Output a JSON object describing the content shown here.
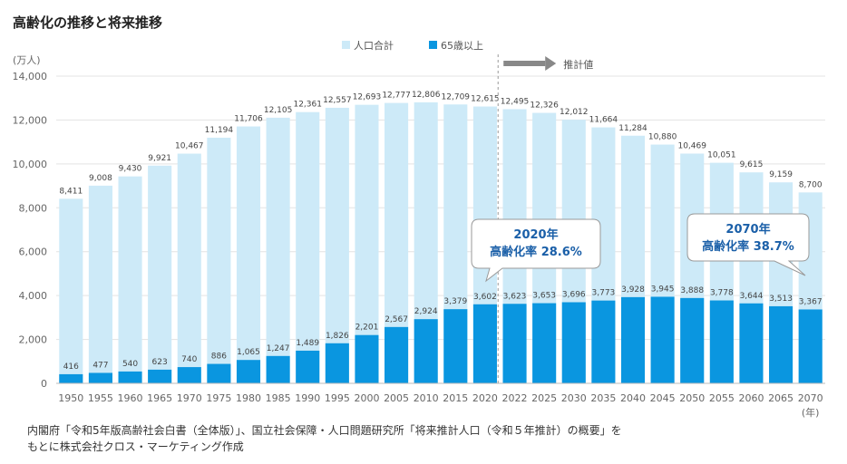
{
  "title": "高齢化の推移と将来推移",
  "chart_data": {
    "type": "bar",
    "stacking": "overlay",
    "categories": [
      "1950",
      "1955",
      "1960",
      "1965",
      "1970",
      "1975",
      "1980",
      "1985",
      "1990",
      "1995",
      "2000",
      "2005",
      "2010",
      "2015",
      "2020",
      "2022",
      "2025",
      "2030",
      "2035",
      "2040",
      "2045",
      "2050",
      "2055",
      "2060",
      "2065",
      "2070"
    ],
    "series": [
      {
        "name": "人口合計",
        "color": "#cdeaf8",
        "values": [
          8411,
          9008,
          9430,
          9921,
          10467,
          11194,
          11706,
          12105,
          12361,
          12557,
          12693,
          12777,
          12806,
          12709,
          12615,
          12495,
          12326,
          12012,
          11664,
          11284,
          10880,
          10469,
          10051,
          9615,
          9159,
          8700
        ]
      },
      {
        "name": "65歳以上",
        "color": "#0a96e0",
        "values": [
          416,
          477,
          540,
          623,
          740,
          886,
          1065,
          1247,
          1489,
          1826,
          2201,
          2567,
          2924,
          3379,
          3602,
          3623,
          3653,
          3696,
          3773,
          3928,
          3945,
          3888,
          3778,
          3644,
          3513,
          3367
        ]
      }
    ],
    "total_labels": [
      "8,411",
      "9,008",
      "9,430",
      "9,921",
      "10,467",
      "11,194",
      "11,706",
      "12,105",
      "12,361",
      "12,557",
      "12,693",
      "12,777",
      "12,806",
      "12,709",
      "12,615",
      "12,495",
      "12,326",
      "12,012",
      "11,664",
      "11,284",
      "10,880",
      "10,469",
      "10,051",
      "9,615",
      "9,159",
      "8,700"
    ],
    "elderly_labels": [
      "416",
      "477",
      "540",
      "623",
      "740",
      "886",
      "1,065",
      "1,247",
      "1,489",
      "1,826",
      "2,201",
      "2,567",
      "2,924",
      "3,379",
      "3,602",
      "3,623",
      "3,653",
      "3,696",
      "3,773",
      "3,928",
      "3,945",
      "3,888",
      "3,778",
      "3,644",
      "3,513",
      "3,367"
    ],
    "ylim": [
      0,
      14000
    ],
    "yticks": [
      "0",
      "2,000",
      "4,000",
      "6,000",
      "8,000",
      "10,000",
      "12,000",
      "14,000"
    ],
    "ylabel": "(万人)",
    "xlabel": "(年)",
    "grid": true,
    "projection_start_category": "2022",
    "projection_label": "推計値",
    "callouts": [
      {
        "line1": "2020年",
        "line2": "高齢化率 28.6%",
        "category": "2020"
      },
      {
        "line1": "2070年",
        "line2": "高齢化率 38.7%",
        "category": "2070"
      }
    ]
  },
  "source_lines": [
    "内閣府「令和5年版高齢社会白書（全体版）」、国立社会保障・人口問題研究所「将来推計人口（令和５年推計）の概要」を",
    "もとに株式会社クロス・マーケティング作成"
  ]
}
